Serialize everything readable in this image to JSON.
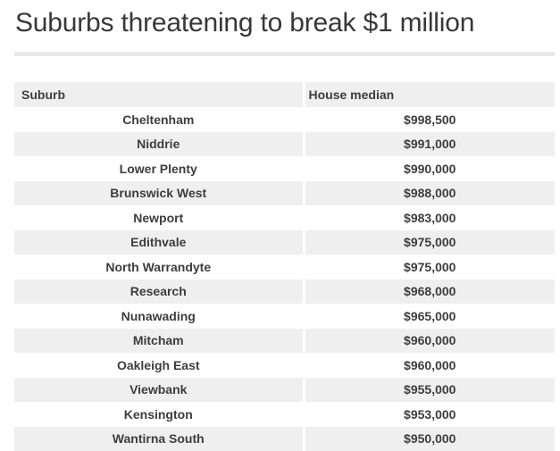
{
  "title": "Suburbs threatening to break $1 million",
  "table": {
    "columns": [
      "Suburb",
      "House median"
    ],
    "rows": [
      {
        "suburb": "Cheltenham",
        "median": "$998,500"
      },
      {
        "suburb": "Niddrie",
        "median": "$991,000"
      },
      {
        "suburb": "Lower Plenty",
        "median": "$990,000"
      },
      {
        "suburb": "Brunswick West",
        "median": "$988,000"
      },
      {
        "suburb": "Newport",
        "median": "$983,000"
      },
      {
        "suburb": "Edithvale",
        "median": "$975,000"
      },
      {
        "suburb": "North Warrandyte",
        "median": "$975,000"
      },
      {
        "suburb": "Research",
        "median": "$968,000"
      },
      {
        "suburb": "Nunawading",
        "median": "$965,000"
      },
      {
        "suburb": "Mitcham",
        "median": "$960,000"
      },
      {
        "suburb": "Oakleigh East",
        "median": "$960,000"
      },
      {
        "suburb": "Viewbank",
        "median": "$955,000"
      },
      {
        "suburb": "Kensington",
        "median": "$953,000"
      },
      {
        "suburb": "Wantirna South",
        "median": "$950,000"
      }
    ]
  },
  "chart_data": {
    "type": "table",
    "title": "Suburbs threatening to break $1 million",
    "columns": [
      "Suburb",
      "House median"
    ],
    "rows": [
      [
        "Cheltenham",
        998500
      ],
      [
        "Niddrie",
        991000
      ],
      [
        "Lower Plenty",
        990000
      ],
      [
        "Brunswick West",
        988000
      ],
      [
        "Newport",
        983000
      ],
      [
        "Edithvale",
        975000
      ],
      [
        "North Warrandyte",
        975000
      ],
      [
        "Research",
        968000
      ],
      [
        "Nunawading",
        965000
      ],
      [
        "Mitcham",
        960000
      ],
      [
        "Oakleigh East",
        960000
      ],
      [
        "Viewbank",
        955000
      ],
      [
        "Kensington",
        953000
      ],
      [
        "Wantirna South",
        950000
      ]
    ],
    "layout": {
      "row_striping": true,
      "stripe_color": "#efefef",
      "header_background": "#efefef",
      "data_alignment": "center",
      "header_alignment": "left"
    }
  },
  "colors": {
    "background": "#ffffff",
    "row_alt_bg": "#efefef",
    "header_bg": "#efefef",
    "divider": "#e8e8e8",
    "title_text": "#383838",
    "cell_text": "#3d3d3d"
  }
}
